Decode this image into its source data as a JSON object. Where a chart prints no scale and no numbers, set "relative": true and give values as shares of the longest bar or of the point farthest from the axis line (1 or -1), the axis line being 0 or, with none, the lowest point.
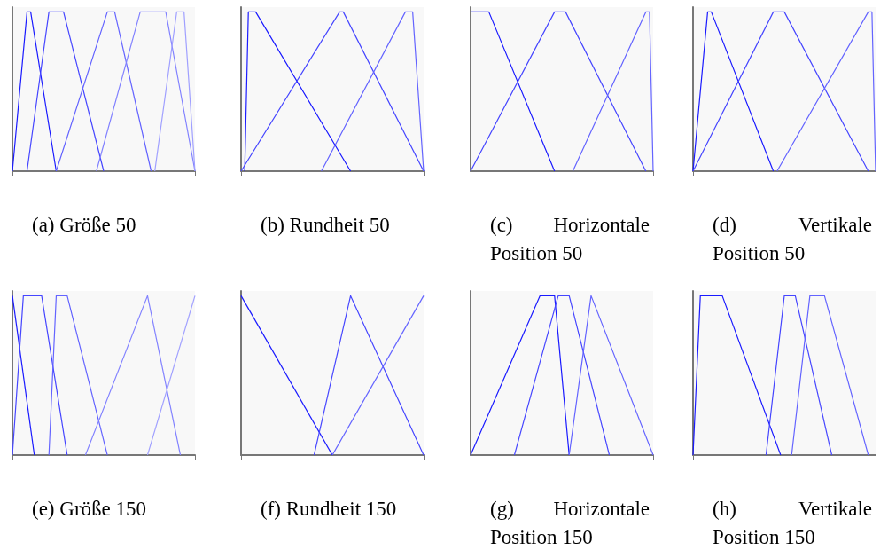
{
  "chart_data": [
    {
      "type": "line",
      "title": "(a) Größe 50",
      "relative": true,
      "categories": [
        null,
        null,
        null,
        null,
        null,
        null,
        null,
        null,
        null,
        null,
        null,
        null,
        null,
        null,
        null,
        null,
        null,
        null,
        null,
        null,
        null,
        null,
        null,
        null,
        null,
        null,
        null,
        null,
        null,
        null,
        null,
        null,
        null,
        null,
        null,
        null,
        null,
        null,
        null,
        null,
        null,
        null,
        null,
        null,
        null,
        null,
        null,
        null,
        null,
        null,
        null
      ],
      "series": [
        {
          "color": "#1a1aff",
          "values": [
            0,
            null,
            null,
            null,
            1,
            1,
            null,
            null,
            null,
            null,
            null,
            null,
            0,
            null,
            null,
            null,
            null,
            null,
            null,
            null,
            null,
            null,
            null,
            null,
            null,
            null,
            null,
            null,
            null,
            null,
            null,
            null,
            null,
            null,
            null,
            null,
            null,
            null,
            null,
            null,
            null,
            null,
            null,
            null,
            null,
            null,
            null,
            null,
            null,
            null,
            null
          ]
        },
        {
          "color": "#4646ff",
          "values": [
            null,
            null,
            null,
            null,
            0,
            null,
            null,
            null,
            null,
            null,
            1,
            null,
            null,
            null,
            1,
            null,
            null,
            null,
            null,
            null,
            null,
            null,
            null,
            null,
            null,
            0,
            null,
            null,
            null,
            null,
            null,
            null,
            null,
            null,
            null,
            null,
            null,
            null,
            null,
            null,
            null,
            null,
            null,
            null,
            null,
            null,
            null,
            null,
            null,
            null,
            null
          ]
        },
        {
          "color": "#6464ff",
          "values": [
            null,
            null,
            null,
            null,
            null,
            null,
            null,
            null,
            null,
            null,
            null,
            null,
            0,
            null,
            null,
            null,
            null,
            null,
            null,
            null,
            null,
            null,
            null,
            null,
            null,
            null,
            1,
            null,
            1,
            null,
            null,
            null,
            null,
            null,
            null,
            null,
            null,
            null,
            0,
            null,
            null,
            null,
            null,
            null,
            null,
            null,
            null,
            null,
            null,
            null,
            null
          ]
        },
        {
          "color": "#8282ff",
          "values": [
            null,
            null,
            null,
            null,
            null,
            null,
            null,
            null,
            null,
            null,
            null,
            null,
            null,
            null,
            null,
            null,
            null,
            null,
            null,
            null,
            null,
            null,
            null,
            0,
            null,
            null,
            null,
            null,
            null,
            null,
            null,
            null,
            null,
            null,
            null,
            1,
            null,
            null,
            null,
            null,
            null,
            null,
            1,
            null,
            null,
            null,
            null,
            null,
            null,
            null,
            0
          ]
        },
        {
          "color": "#a0a0ff",
          "values": [
            null,
            null,
            null,
            null,
            null,
            null,
            null,
            null,
            null,
            null,
            null,
            null,
            null,
            null,
            null,
            null,
            null,
            null,
            null,
            null,
            null,
            null,
            null,
            null,
            null,
            null,
            null,
            null,
            null,
            null,
            null,
            null,
            null,
            null,
            null,
            null,
            null,
            null,
            null,
            0,
            null,
            null,
            null,
            null,
            null,
            1,
            null,
            1,
            null,
            null,
            0
          ]
        }
      ]
    },
    {
      "type": "line",
      "title": "(b) Rundheit 50",
      "relative": true,
      "categories": [
        null,
        null,
        null,
        null,
        null,
        null,
        null,
        null,
        null,
        null,
        null,
        null,
        null,
        null,
        null,
        null,
        null,
        null,
        null,
        null,
        null,
        null,
        null,
        null,
        null,
        null,
        null,
        null,
        null,
        null,
        null,
        null,
        null,
        null,
        null,
        null,
        null,
        null,
        null,
        null,
        null,
        null,
        null,
        null,
        null,
        null,
        null,
        null,
        null,
        null,
        null
      ],
      "series": [
        {
          "color": "#1a1aff",
          "values": [
            null,
            0,
            1,
            null,
            1,
            null,
            null,
            null,
            null,
            null,
            null,
            null,
            null,
            null,
            null,
            null,
            null,
            null,
            null,
            null,
            null,
            null,
            null,
            null,
            null,
            null,
            null,
            null,
            null,
            null,
            0,
            null,
            null,
            null,
            null,
            null,
            null,
            null,
            null,
            null,
            null,
            null,
            null,
            null,
            null,
            null,
            null,
            null,
            null,
            null,
            null
          ]
        },
        {
          "color": "#4646ff",
          "values": [
            0,
            null,
            null,
            null,
            null,
            null,
            null,
            null,
            null,
            null,
            null,
            null,
            null,
            null,
            null,
            null,
            null,
            null,
            null,
            null,
            null,
            null,
            null,
            null,
            null,
            null,
            null,
            1,
            1,
            null,
            null,
            null,
            null,
            null,
            null,
            null,
            null,
            null,
            null,
            null,
            null,
            null,
            null,
            null,
            null,
            null,
            null,
            null,
            null,
            null,
            0
          ]
        },
        {
          "color": "#6464ff",
          "values": [
            null,
            null,
            null,
            null,
            null,
            null,
            null,
            null,
            null,
            null,
            null,
            null,
            null,
            null,
            null,
            null,
            null,
            null,
            null,
            null,
            null,
            null,
            0,
            null,
            null,
            null,
            null,
            null,
            null,
            null,
            null,
            null,
            null,
            null,
            null,
            null,
            null,
            null,
            null,
            null,
            null,
            null,
            null,
            null,
            null,
            1,
            null,
            1,
            null,
            null,
            0
          ]
        }
      ]
    },
    {
      "type": "line",
      "title": "(c) Horizontale Position 50",
      "relative": true,
      "categories": [
        null,
        null,
        null,
        null,
        null,
        null,
        null,
        null,
        null,
        null,
        null,
        null,
        null,
        null,
        null,
        null,
        null,
        null,
        null,
        null,
        null,
        null,
        null,
        null,
        null,
        null,
        null,
        null,
        null,
        null,
        null,
        null,
        null,
        null,
        null,
        null,
        null,
        null,
        null,
        null,
        null,
        null,
        null,
        null,
        null,
        null,
        null,
        null,
        null,
        null,
        null
      ],
      "series": [
        {
          "color": "#1a1aff",
          "values": [
            1,
            null,
            null,
            null,
            null,
            1,
            null,
            null,
            null,
            null,
            null,
            null,
            null,
            null,
            null,
            null,
            null,
            null,
            null,
            null,
            null,
            null,
            null,
            0,
            null,
            null,
            null,
            null,
            null,
            null,
            null,
            null,
            null,
            null,
            null,
            null,
            null,
            null,
            null,
            null,
            null,
            null,
            null,
            null,
            null,
            null,
            null,
            null,
            null,
            null,
            null
          ]
        },
        {
          "color": "#4646ff",
          "values": [
            0,
            null,
            null,
            null,
            null,
            null,
            null,
            null,
            null,
            null,
            null,
            null,
            null,
            null,
            null,
            null,
            null,
            null,
            null,
            null,
            null,
            null,
            null,
            1,
            null,
            null,
            1,
            null,
            null,
            null,
            null,
            null,
            null,
            null,
            null,
            null,
            null,
            null,
            null,
            null,
            null,
            null,
            null,
            null,
            null,
            null,
            null,
            null,
            0,
            null,
            null
          ]
        },
        {
          "color": "#6464ff",
          "values": [
            null,
            null,
            null,
            null,
            null,
            null,
            null,
            null,
            null,
            null,
            null,
            null,
            null,
            null,
            null,
            null,
            null,
            null,
            null,
            null,
            null,
            null,
            null,
            null,
            null,
            null,
            null,
            null,
            0,
            null,
            null,
            null,
            null,
            null,
            null,
            null,
            null,
            null,
            null,
            null,
            null,
            null,
            null,
            null,
            null,
            null,
            null,
            null,
            1,
            1,
            0
          ]
        }
      ]
    },
    {
      "type": "line",
      "title": "(d) Vertikale Position 50",
      "relative": true,
      "categories": [
        null,
        null,
        null,
        null,
        null,
        null,
        null,
        null,
        null,
        null,
        null,
        null,
        null,
        null,
        null,
        null,
        null,
        null,
        null,
        null,
        null,
        null,
        null,
        null,
        null,
        null,
        null,
        null,
        null,
        null,
        null,
        null,
        null,
        null,
        null,
        null,
        null,
        null,
        null,
        null,
        null,
        null,
        null,
        null,
        null,
        null,
        null,
        null,
        null,
        null,
        null
      ],
      "series": [
        {
          "color": "#1a1aff",
          "values": [
            0,
            null,
            null,
            null,
            1,
            1,
            null,
            null,
            null,
            null,
            null,
            null,
            null,
            null,
            null,
            null,
            null,
            null,
            null,
            null,
            null,
            null,
            0,
            null,
            null,
            null,
            null,
            null,
            null,
            null,
            null,
            null,
            null,
            null,
            null,
            null,
            null,
            null,
            null,
            null,
            null,
            null,
            null,
            null,
            null,
            null,
            null,
            null,
            null,
            null,
            null
          ]
        },
        {
          "color": "#4646ff",
          "values": [
            0,
            null,
            null,
            null,
            null,
            null,
            null,
            null,
            null,
            null,
            null,
            null,
            null,
            null,
            null,
            null,
            null,
            null,
            null,
            null,
            null,
            null,
            1,
            null,
            null,
            1,
            null,
            null,
            null,
            null,
            null,
            null,
            null,
            null,
            null,
            null,
            null,
            null,
            null,
            null,
            null,
            null,
            null,
            null,
            null,
            null,
            null,
            null,
            0,
            null,
            null
          ]
        },
        {
          "color": "#6464ff",
          "values": [
            null,
            null,
            null,
            null,
            null,
            null,
            null,
            null,
            null,
            null,
            null,
            null,
            null,
            null,
            null,
            null,
            null,
            null,
            null,
            null,
            null,
            null,
            null,
            0,
            null,
            null,
            null,
            null,
            null,
            null,
            null,
            null,
            null,
            null,
            null,
            null,
            null,
            null,
            null,
            null,
            null,
            null,
            null,
            null,
            null,
            null,
            null,
            null,
            1,
            1,
            0
          ]
        }
      ]
    },
    {
      "type": "line",
      "title": "(e) Größe 150",
      "relative": true,
      "categories": [
        null,
        null,
        null,
        null,
        null,
        null,
        null,
        null,
        null,
        null,
        null,
        null,
        null,
        null,
        null,
        null,
        null,
        null,
        null,
        null,
        null,
        null,
        null,
        null,
        null,
        null,
        null,
        null,
        null,
        null,
        null,
        null,
        null,
        null,
        null,
        null,
        null,
        null,
        null,
        null,
        null,
        null,
        null,
        null,
        null,
        null,
        null,
        null,
        null,
        null,
        null
      ],
      "series": [
        {
          "color": "#1a1aff",
          "values": [
            1,
            null,
            null,
            null,
            null,
            null,
            0,
            null,
            null,
            null,
            null,
            null,
            null,
            null,
            null,
            null,
            null,
            null,
            null,
            null,
            null,
            null,
            null,
            null,
            null,
            null,
            null,
            null,
            null,
            null,
            null,
            null,
            null,
            null,
            null,
            null,
            null,
            null,
            null,
            null,
            null,
            null,
            null,
            null,
            null,
            null,
            null,
            null,
            null,
            null,
            null
          ]
        },
        {
          "color": "#4646ff",
          "values": [
            0,
            null,
            null,
            1,
            null,
            null,
            null,
            null,
            1,
            null,
            null,
            null,
            null,
            null,
            null,
            0,
            null,
            null,
            null,
            null,
            null,
            null,
            null,
            null,
            null,
            null,
            null,
            null,
            null,
            null,
            null,
            null,
            null,
            null,
            null,
            null,
            null,
            null,
            null,
            null,
            null,
            null,
            null,
            null,
            null,
            null,
            null,
            null,
            null,
            null,
            null
          ]
        },
        {
          "color": "#6464ff",
          "values": [
            null,
            null,
            null,
            null,
            null,
            null,
            null,
            null,
            null,
            null,
            0,
            null,
            1,
            null,
            null,
            1,
            null,
            null,
            null,
            null,
            null,
            null,
            null,
            null,
            null,
            null,
            0,
            null,
            null,
            null,
            null,
            null,
            null,
            null,
            null,
            null,
            null,
            null,
            null,
            null,
            null,
            null,
            null,
            null,
            null,
            null,
            null,
            null,
            null,
            null,
            null
          ]
        },
        {
          "color": "#8282ff",
          "values": [
            null,
            null,
            null,
            null,
            null,
            null,
            null,
            null,
            null,
            null,
            null,
            null,
            null,
            null,
            null,
            null,
            null,
            null,
            null,
            null,
            0,
            null,
            null,
            null,
            null,
            null,
            null,
            null,
            null,
            null,
            null,
            null,
            null,
            null,
            null,
            null,
            null,
            1,
            null,
            null,
            null,
            null,
            null,
            null,
            null,
            null,
            0,
            null,
            null,
            null,
            null
          ]
        },
        {
          "color": "#a0a0ff",
          "values": [
            null,
            null,
            null,
            null,
            null,
            null,
            null,
            null,
            null,
            null,
            null,
            null,
            null,
            null,
            null,
            null,
            null,
            null,
            null,
            null,
            null,
            null,
            null,
            null,
            null,
            null,
            null,
            null,
            null,
            null,
            null,
            null,
            null,
            null,
            null,
            null,
            null,
            0,
            null,
            null,
            null,
            null,
            null,
            null,
            null,
            null,
            null,
            null,
            null,
            null,
            1
          ]
        }
      ]
    },
    {
      "type": "line",
      "title": "(f) Rundheit 150",
      "relative": true,
      "categories": [
        null,
        null,
        null,
        null,
        null,
        null,
        null,
        null,
        null,
        null,
        null,
        null,
        null,
        null,
        null,
        null,
        null,
        null,
        null,
        null,
        null,
        null,
        null,
        null,
        null,
        null,
        null,
        null,
        null,
        null,
        null,
        null,
        null,
        null,
        null,
        null,
        null,
        null,
        null,
        null,
        null,
        null,
        null,
        null,
        null,
        null,
        null,
        null,
        null,
        null,
        null
      ],
      "series": [
        {
          "color": "#1a1aff",
          "values": [
            1,
            null,
            null,
            null,
            null,
            null,
            null,
            null,
            null,
            null,
            null,
            null,
            null,
            null,
            null,
            null,
            null,
            null,
            null,
            null,
            null,
            null,
            null,
            null,
            null,
            0,
            null,
            null,
            null,
            null,
            null,
            null,
            null,
            null,
            null,
            null,
            null,
            null,
            null,
            null,
            null,
            null,
            null,
            null,
            null,
            null,
            null,
            null,
            null,
            null,
            null
          ]
        },
        {
          "color": "#4646ff",
          "values": [
            null,
            null,
            null,
            null,
            null,
            null,
            null,
            null,
            null,
            null,
            null,
            null,
            null,
            null,
            null,
            null,
            null,
            null,
            null,
            null,
            0,
            null,
            null,
            null,
            null,
            null,
            null,
            null,
            null,
            null,
            1,
            null,
            null,
            null,
            null,
            null,
            null,
            null,
            null,
            null,
            null,
            null,
            null,
            null,
            null,
            null,
            null,
            null,
            null,
            null,
            0
          ]
        },
        {
          "color": "#6464ff",
          "values": [
            null,
            null,
            null,
            null,
            null,
            null,
            null,
            null,
            null,
            null,
            null,
            null,
            null,
            null,
            null,
            null,
            null,
            null,
            null,
            null,
            null,
            null,
            null,
            null,
            null,
            0,
            null,
            null,
            null,
            null,
            null,
            null,
            null,
            null,
            null,
            null,
            null,
            null,
            null,
            null,
            null,
            null,
            null,
            null,
            null,
            null,
            null,
            null,
            null,
            null,
            1
          ]
        }
      ]
    },
    {
      "type": "line",
      "title": "(g) Horizontale Position 150",
      "relative": true,
      "categories": [
        null,
        null,
        null,
        null,
        null,
        null,
        null,
        null,
        null,
        null,
        null,
        null,
        null,
        null,
        null,
        null,
        null,
        null,
        null,
        null,
        null,
        null,
        null,
        null,
        null,
        null,
        null,
        null,
        null,
        null,
        null,
        null,
        null,
        null,
        null,
        null,
        null,
        null,
        null,
        null,
        null,
        null,
        null,
        null,
        null,
        null,
        null,
        null,
        null,
        null,
        null
      ],
      "series": [
        {
          "color": "#1a1aff",
          "values": [
            0,
            null,
            null,
            null,
            null,
            null,
            null,
            null,
            null,
            null,
            null,
            null,
            null,
            null,
            null,
            null,
            null,
            null,
            null,
            1,
            null,
            null,
            null,
            1,
            null,
            null,
            null,
            0,
            null,
            null,
            null,
            null,
            null,
            null,
            null,
            null,
            null,
            null,
            null,
            null,
            null,
            null,
            null,
            null,
            null,
            null,
            null,
            null,
            null,
            null,
            null
          ]
        },
        {
          "color": "#4646ff",
          "values": [
            null,
            null,
            null,
            null,
            null,
            null,
            null,
            null,
            null,
            null,
            null,
            null,
            0,
            null,
            null,
            null,
            null,
            null,
            null,
            null,
            null,
            null,
            null,
            null,
            1,
            null,
            null,
            1,
            null,
            null,
            null,
            null,
            null,
            null,
            null,
            null,
            null,
            null,
            0,
            null,
            null,
            null,
            null,
            null,
            null,
            null,
            null,
            null,
            null,
            null,
            null
          ]
        },
        {
          "color": "#6464ff",
          "values": [
            null,
            null,
            null,
            null,
            null,
            null,
            null,
            null,
            null,
            null,
            null,
            null,
            null,
            null,
            null,
            null,
            null,
            null,
            null,
            null,
            null,
            null,
            null,
            null,
            null,
            null,
            null,
            0,
            null,
            null,
            null,
            null,
            null,
            1,
            null,
            null,
            null,
            null,
            null,
            null,
            null,
            null,
            null,
            null,
            null,
            null,
            null,
            null,
            null,
            null,
            0
          ]
        }
      ]
    },
    {
      "type": "line",
      "title": "(h) Vertikale Position 150",
      "relative": true,
      "categories": [
        null,
        null,
        null,
        null,
        null,
        null,
        null,
        null,
        null,
        null,
        null,
        null,
        null,
        null,
        null,
        null,
        null,
        null,
        null,
        null,
        null,
        null,
        null,
        null,
        null,
        null,
        null,
        null,
        null,
        null,
        null,
        null,
        null,
        null,
        null,
        null,
        null,
        null,
        null,
        null,
        null,
        null,
        null,
        null,
        null,
        null,
        null,
        null,
        null,
        null,
        null
      ],
      "series": [
        {
          "color": "#1a1aff",
          "values": [
            0,
            null,
            1,
            null,
            null,
            null,
            null,
            null,
            1,
            null,
            null,
            null,
            null,
            null,
            null,
            null,
            null,
            null,
            null,
            null,
            null,
            null,
            null,
            null,
            0,
            null,
            null,
            null,
            null,
            null,
            null,
            null,
            null,
            null,
            null,
            null,
            null,
            null,
            null,
            null,
            null,
            null,
            null,
            null,
            null,
            null,
            null,
            null,
            null,
            null,
            null
          ]
        },
        {
          "color": "#4646ff",
          "values": [
            null,
            null,
            null,
            null,
            null,
            null,
            null,
            null,
            null,
            null,
            null,
            null,
            null,
            null,
            null,
            null,
            null,
            null,
            null,
            null,
            0,
            null,
            null,
            null,
            null,
            1,
            null,
            null,
            1,
            null,
            null,
            null,
            null,
            null,
            null,
            null,
            null,
            null,
            0,
            null,
            null,
            null,
            null,
            null,
            null,
            null,
            null,
            null,
            null,
            null,
            null
          ]
        },
        {
          "color": "#6464ff",
          "values": [
            null,
            null,
            null,
            null,
            null,
            null,
            null,
            null,
            null,
            null,
            null,
            null,
            null,
            null,
            null,
            null,
            null,
            null,
            null,
            null,
            null,
            null,
            null,
            null,
            null,
            null,
            null,
            0,
            null,
            null,
            null,
            null,
            1,
            null,
            null,
            null,
            1,
            null,
            null,
            null,
            null,
            null,
            null,
            null,
            null,
            null,
            null,
            null,
            0,
            null,
            null
          ]
        }
      ]
    }
  ]
}
